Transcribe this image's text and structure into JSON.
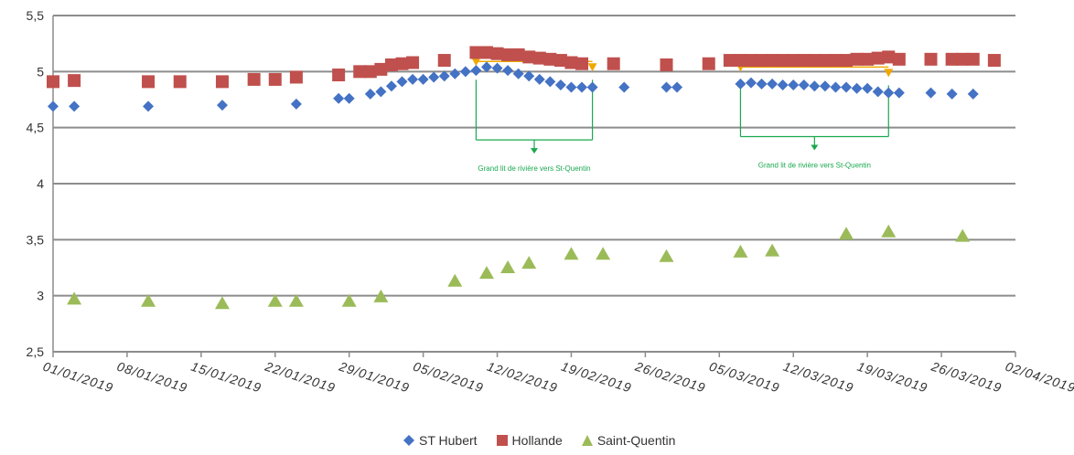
{
  "chart_data": {
    "type": "scatter",
    "title": "",
    "xlabel": "",
    "ylabel": "",
    "ylim": [
      2.5,
      5.5
    ],
    "yticks": [
      "2,5",
      "3",
      "3,5",
      "4",
      "4,5",
      "5",
      "5,5"
    ],
    "xlim_dates": [
      "2019-01-01",
      "2019-04-02"
    ],
    "xticks": [
      "01/01/2019",
      "08/01/2019",
      "15/01/2019",
      "22/01/2019",
      "29/01/2019",
      "05/02/2019",
      "12/02/2019",
      "19/02/2019",
      "26/02/2019",
      "05/03/2019",
      "12/03/2019",
      "19/03/2019",
      "26/03/2019",
      "02/04/2019"
    ],
    "grid": "horizontal",
    "legend_position": "bottom",
    "series": [
      {
        "name": "ST Hubert",
        "marker": "diamond",
        "color": "#4472c4",
        "points": [
          [
            "2019-01-01",
            4.69
          ],
          [
            "2019-01-03",
            4.69
          ],
          [
            "2019-01-10",
            4.69
          ],
          [
            "2019-01-17",
            4.7
          ],
          [
            "2019-01-24",
            4.71
          ],
          [
            "2019-01-28",
            4.76
          ],
          [
            "2019-01-29",
            4.76
          ],
          [
            "2019-01-31",
            4.8
          ],
          [
            "2019-02-01",
            4.82
          ],
          [
            "2019-02-02",
            4.87
          ],
          [
            "2019-02-03",
            4.91
          ],
          [
            "2019-02-04",
            4.93
          ],
          [
            "2019-02-05",
            4.93
          ],
          [
            "2019-02-06",
            4.95
          ],
          [
            "2019-02-07",
            4.96
          ],
          [
            "2019-02-08",
            4.98
          ],
          [
            "2019-02-09",
            5.0
          ],
          [
            "2019-02-10",
            5.01
          ],
          [
            "2019-02-11",
            5.04
          ],
          [
            "2019-02-12",
            5.03
          ],
          [
            "2019-02-13",
            5.01
          ],
          [
            "2019-02-14",
            4.98
          ],
          [
            "2019-02-15",
            4.96
          ],
          [
            "2019-02-16",
            4.93
          ],
          [
            "2019-02-17",
            4.91
          ],
          [
            "2019-02-18",
            4.88
          ],
          [
            "2019-02-19",
            4.86
          ],
          [
            "2019-02-20",
            4.86
          ],
          [
            "2019-02-21",
            4.86
          ],
          [
            "2019-02-24",
            4.86
          ],
          [
            "2019-02-28",
            4.86
          ],
          [
            "2019-03-01",
            4.86
          ],
          [
            "2019-03-07",
            4.89
          ],
          [
            "2019-03-08",
            4.9
          ],
          [
            "2019-03-09",
            4.89
          ],
          [
            "2019-03-10",
            4.89
          ],
          [
            "2019-03-11",
            4.88
          ],
          [
            "2019-03-12",
            4.88
          ],
          [
            "2019-03-13",
            4.88
          ],
          [
            "2019-03-14",
            4.87
          ],
          [
            "2019-03-15",
            4.87
          ],
          [
            "2019-03-16",
            4.86
          ],
          [
            "2019-03-17",
            4.86
          ],
          [
            "2019-03-18",
            4.85
          ],
          [
            "2019-03-19",
            4.85
          ],
          [
            "2019-03-20",
            4.82
          ],
          [
            "2019-03-21",
            4.81
          ],
          [
            "2019-03-22",
            4.81
          ],
          [
            "2019-03-25",
            4.81
          ],
          [
            "2019-03-27",
            4.8
          ],
          [
            "2019-03-29",
            4.8
          ]
        ]
      },
      {
        "name": "Hollande",
        "marker": "square",
        "color": "#c0504d",
        "points": [
          [
            "2019-01-01",
            4.91
          ],
          [
            "2019-01-03",
            4.92
          ],
          [
            "2019-01-10",
            4.91
          ],
          [
            "2019-01-13",
            4.91
          ],
          [
            "2019-01-17",
            4.91
          ],
          [
            "2019-01-20",
            4.93
          ],
          [
            "2019-01-22",
            4.93
          ],
          [
            "2019-01-24",
            4.95
          ],
          [
            "2019-01-28",
            4.97
          ],
          [
            "2019-01-30",
            5.0
          ],
          [
            "2019-01-31",
            5.0
          ],
          [
            "2019-02-01",
            5.02
          ],
          [
            "2019-02-02",
            5.06
          ],
          [
            "2019-02-03",
            5.07
          ],
          [
            "2019-02-04",
            5.08
          ],
          [
            "2019-02-07",
            5.1
          ],
          [
            "2019-02-10",
            5.17
          ],
          [
            "2019-02-11",
            5.17
          ],
          [
            "2019-02-12",
            5.16
          ],
          [
            "2019-02-13",
            5.15
          ],
          [
            "2019-02-14",
            5.15
          ],
          [
            "2019-02-15",
            5.13
          ],
          [
            "2019-02-16",
            5.12
          ],
          [
            "2019-02-17",
            5.11
          ],
          [
            "2019-02-18",
            5.1
          ],
          [
            "2019-02-19",
            5.08
          ],
          [
            "2019-02-20",
            5.07
          ],
          [
            "2019-02-23",
            5.07
          ],
          [
            "2019-02-28",
            5.06
          ],
          [
            "2019-03-04",
            5.07
          ],
          [
            "2019-03-06",
            5.1
          ],
          [
            "2019-03-07",
            5.1
          ],
          [
            "2019-03-08",
            5.1
          ],
          [
            "2019-03-09",
            5.1
          ],
          [
            "2019-03-10",
            5.1
          ],
          [
            "2019-03-11",
            5.1
          ],
          [
            "2019-03-12",
            5.1
          ],
          [
            "2019-03-13",
            5.1
          ],
          [
            "2019-03-14",
            5.1
          ],
          [
            "2019-03-15",
            5.1
          ],
          [
            "2019-03-16",
            5.1
          ],
          [
            "2019-03-17",
            5.1
          ],
          [
            "2019-03-18",
            5.11
          ],
          [
            "2019-03-19",
            5.11
          ],
          [
            "2019-03-20",
            5.12
          ],
          [
            "2019-03-21",
            5.13
          ],
          [
            "2019-03-22",
            5.11
          ],
          [
            "2019-03-25",
            5.11
          ],
          [
            "2019-03-27",
            5.11
          ],
          [
            "2019-03-28",
            5.11
          ],
          [
            "2019-03-29",
            5.11
          ],
          [
            "2019-03-31",
            5.1
          ]
        ]
      },
      {
        "name": "Saint-Quentin",
        "marker": "triangle",
        "color": "#9bbb59",
        "points": [
          [
            "2019-01-03",
            2.97
          ],
          [
            "2019-01-10",
            2.95
          ],
          [
            "2019-01-17",
            2.93
          ],
          [
            "2019-01-22",
            2.95
          ],
          [
            "2019-01-24",
            2.95
          ],
          [
            "2019-01-29",
            2.95
          ],
          [
            "2019-02-01",
            2.99
          ],
          [
            "2019-02-08",
            3.13
          ],
          [
            "2019-02-11",
            3.2
          ],
          [
            "2019-02-13",
            3.25
          ],
          [
            "2019-02-15",
            3.29
          ],
          [
            "2019-02-19",
            3.37
          ],
          [
            "2019-02-22",
            3.37
          ],
          [
            "2019-02-28",
            3.35
          ],
          [
            "2019-03-07",
            3.39
          ],
          [
            "2019-03-10",
            3.4
          ],
          [
            "2019-03-17",
            3.55
          ],
          [
            "2019-03-21",
            3.57
          ],
          [
            "2019-03-28",
            3.53
          ]
        ]
      }
    ],
    "annotations": [
      {
        "text": "Grand lit de rivière vers St-Quentin",
        "date_from": "2019-02-10",
        "date_to": "2019-02-21",
        "value_top": 5.09,
        "value_bottom": 4.39
      },
      {
        "text": "Grand lit de rivière vers St-Quentin",
        "date_from": "2019-03-07",
        "date_to": "2019-03-21",
        "value_top": 5.04,
        "value_bottom": 4.42
      }
    ]
  }
}
